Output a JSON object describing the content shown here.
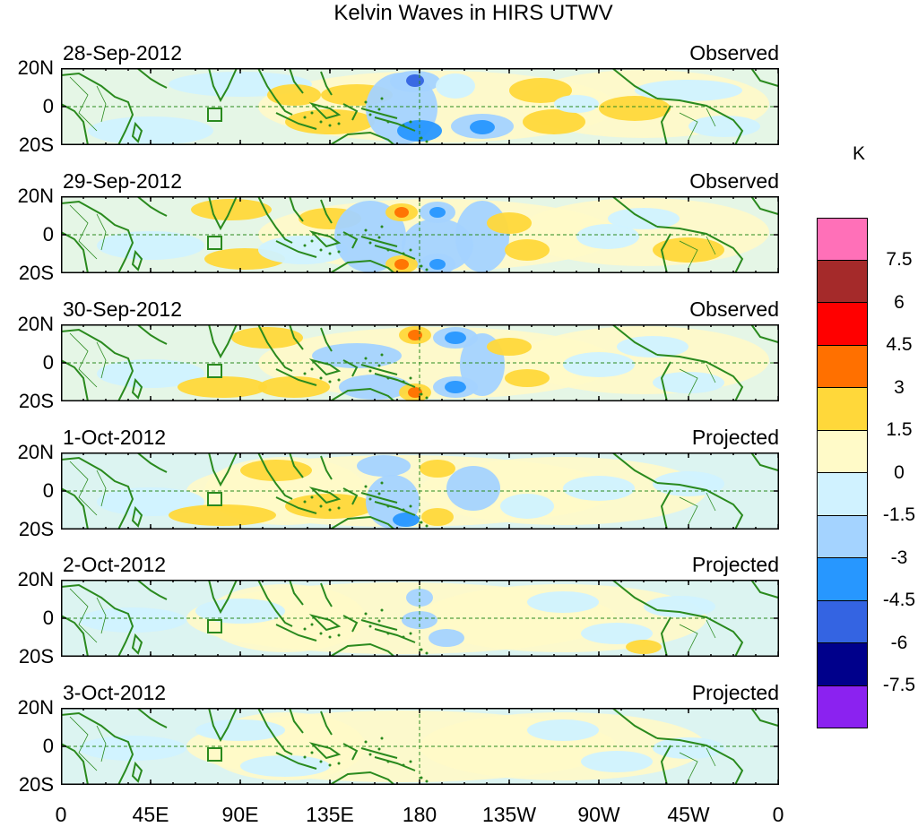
{
  "title": "Kelvin Waves in HIRS UTWV",
  "panels": [
    {
      "date": "28-Sep-2012",
      "status": "Observed"
    },
    {
      "date": "29-Sep-2012",
      "status": "Observed"
    },
    {
      "date": "30-Sep-2012",
      "status": "Observed"
    },
    {
      "date": "1-Oct-2012",
      "status": "Projected"
    },
    {
      "date": "2-Oct-2012",
      "status": "Projected"
    },
    {
      "date": "3-Oct-2012",
      "status": "Projected"
    }
  ],
  "lat_labels": {
    "north": "20N",
    "equator": "0",
    "south": "20S"
  },
  "lon_labels": [
    "0",
    "45E",
    "90E",
    "135E",
    "180",
    "135W",
    "90W",
    "45W",
    "0"
  ],
  "colorbar": {
    "units": "K",
    "labels": [
      "7.5",
      "6",
      "4.5",
      "3",
      "1.5",
      "0",
      "-1.5",
      "-3",
      "-4.5",
      "-6",
      "-7.5"
    ],
    "colors": [
      "#ff70b8",
      "#a52a2a",
      "#ff0000",
      "#ff7000",
      "#ffd83a",
      "#fffac8",
      "#d0f2ff",
      "#a4d3ff",
      "#2797ff",
      "#3464e2",
      "#00008b",
      "#8b22f0"
    ]
  },
  "map_colors": {
    "land": "#2a8a1e",
    "border": "#2a8a1e",
    "ref_line": "#2a8a1e"
  }
}
